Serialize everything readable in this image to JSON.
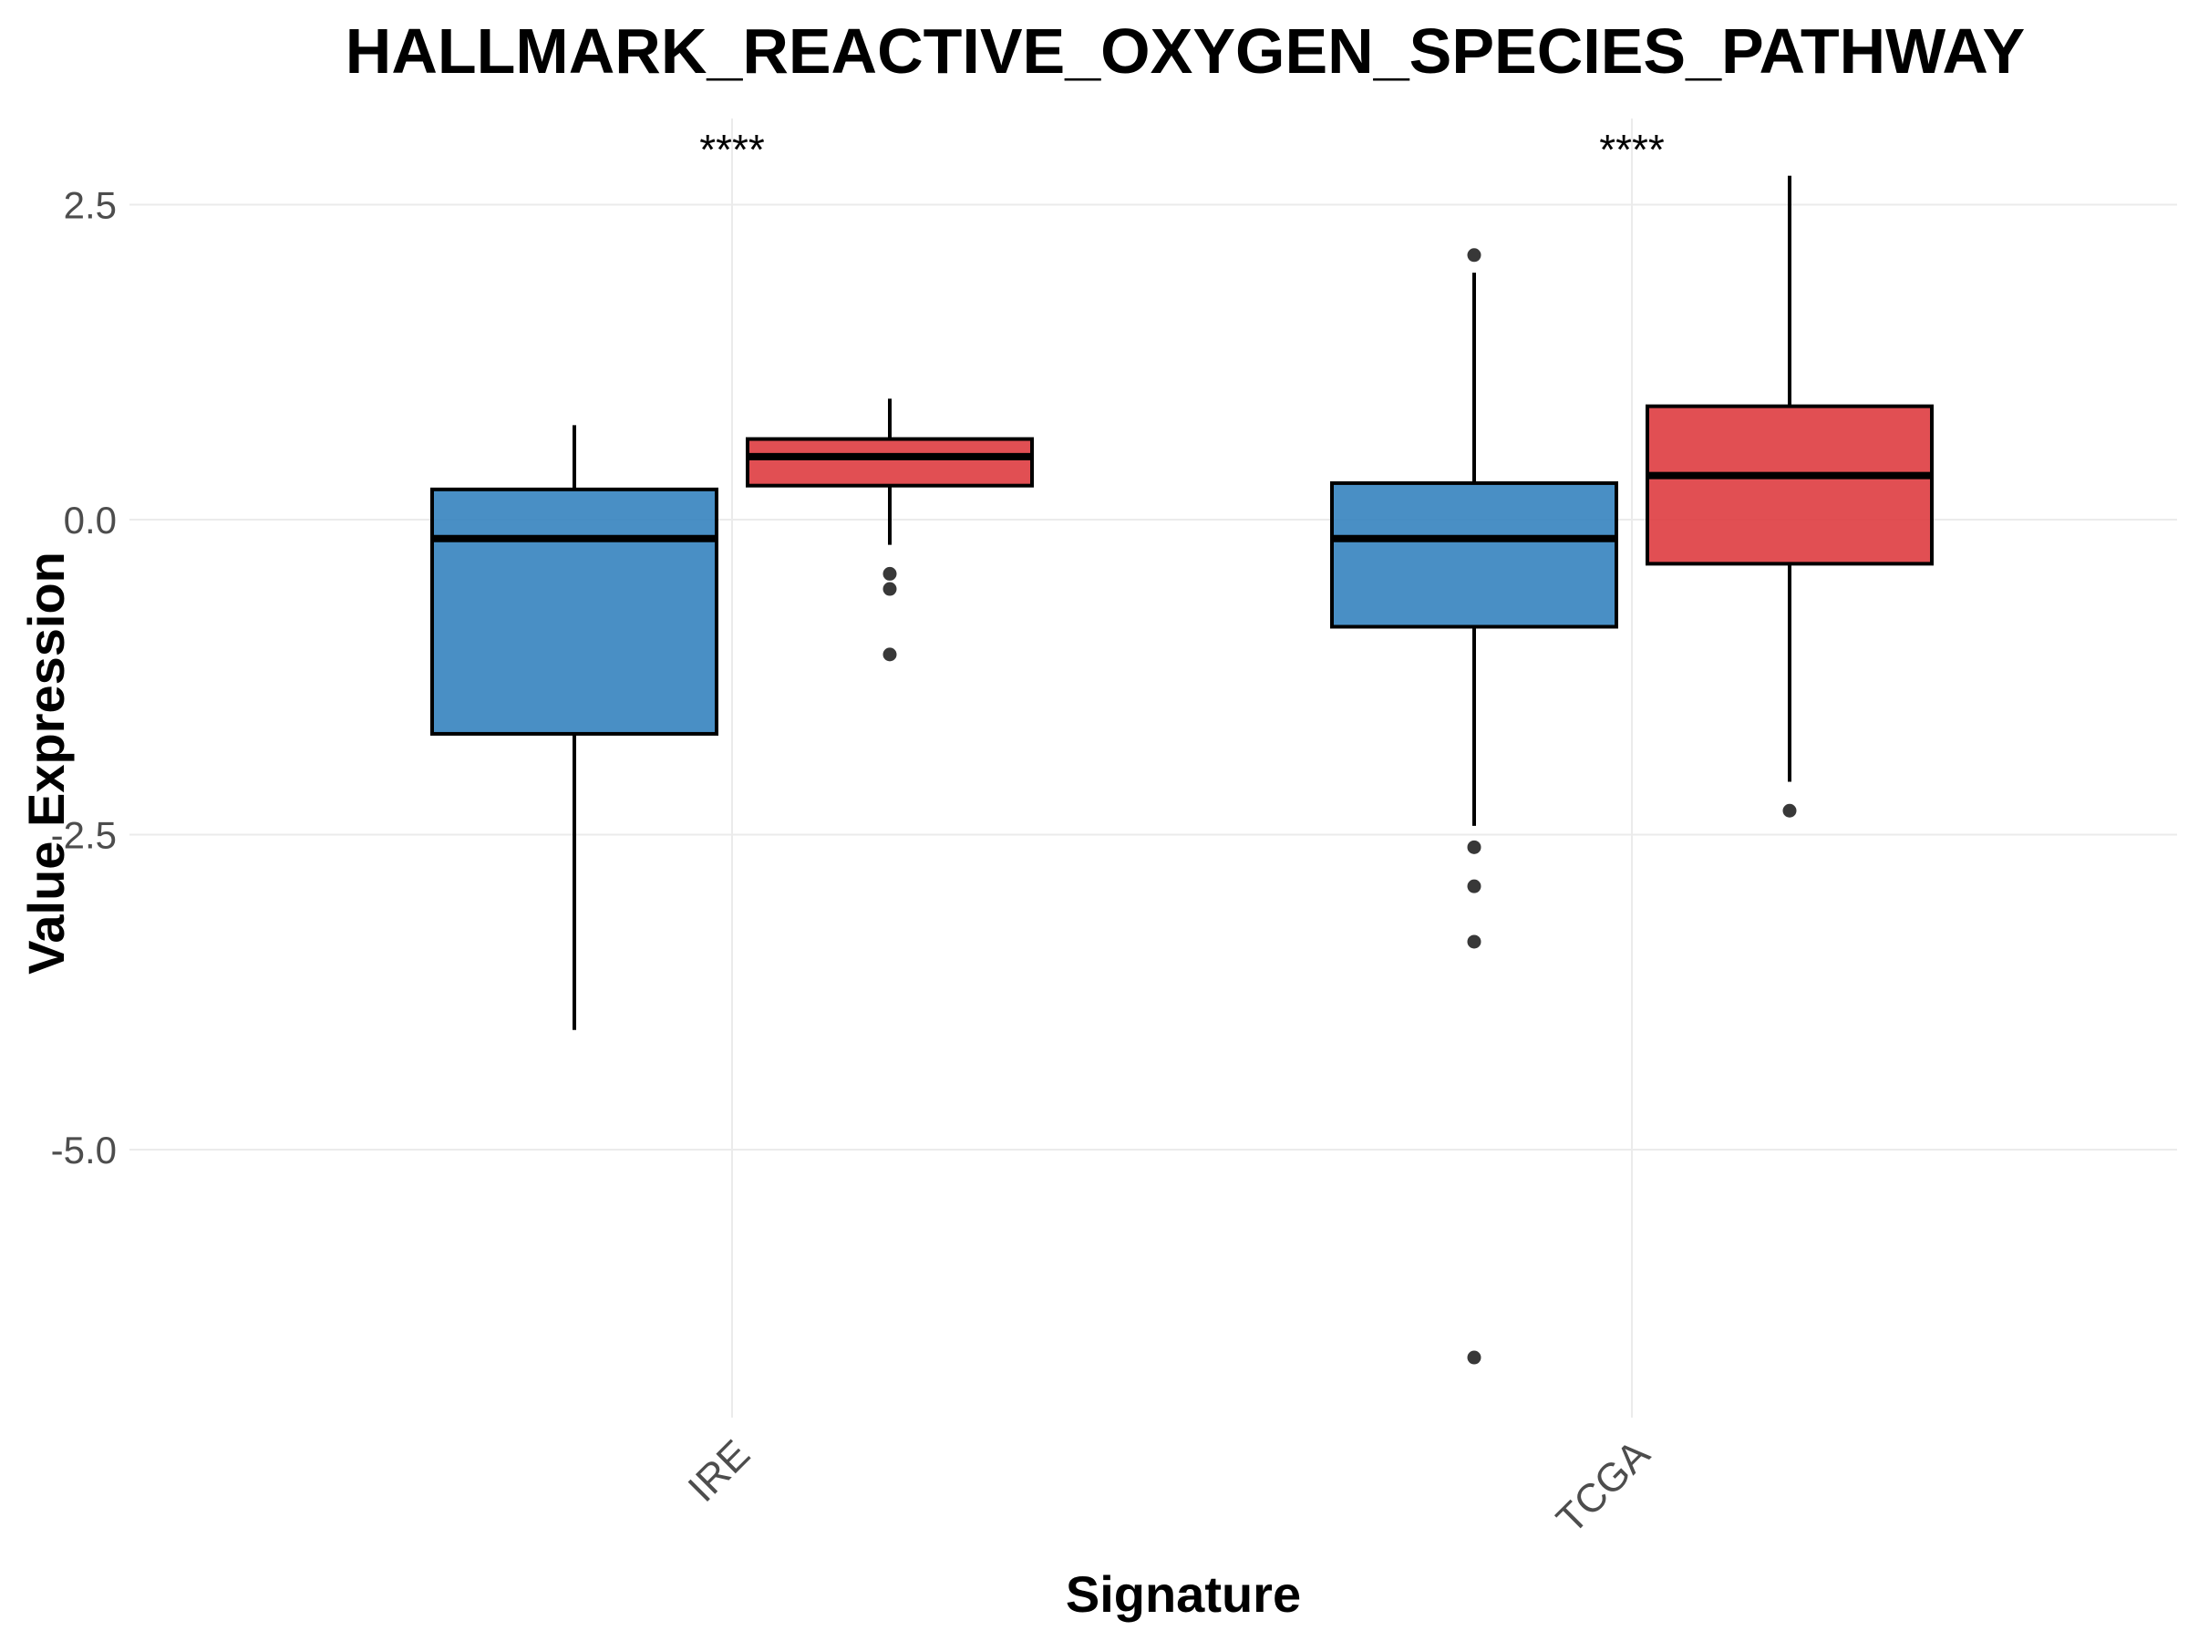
{
  "chart_data": {
    "type": "boxplot",
    "title": "HALLMARK_REACTIVE_OXYGEN_SPECIES_PATHWAY",
    "xlabel": "Signature",
    "ylabel": "Value Expression",
    "categories": [
      "IRE",
      "TCGA"
    ],
    "ylim": [
      -7.2,
      3.2
    ],
    "yticks": [
      2.5,
      0.0,
      -2.5,
      -5.0
    ],
    "ytick_labels": [
      "2.5",
      "0.0",
      "-2.5",
      "-5.0"
    ],
    "grid": true,
    "colors": {
      "group1": "#2e7ebc",
      "group2": "#dc3539"
    },
    "boxes": [
      {
        "category": "IRE",
        "group": 1,
        "whisker_low": -4.05,
        "q1": -1.7,
        "median": -0.15,
        "q3": 0.24,
        "whisker_high": 0.75,
        "outliers": []
      },
      {
        "category": "IRE",
        "group": 2,
        "whisker_low": -0.2,
        "q1": 0.27,
        "median": 0.5,
        "q3": 0.64,
        "whisker_high": 0.96,
        "outliers": [
          -0.43,
          -0.55,
          -1.07
        ]
      },
      {
        "category": "TCGA",
        "group": 1,
        "whisker_low": -2.43,
        "q1": -0.85,
        "median": -0.15,
        "q3": 0.29,
        "whisker_high": 1.96,
        "outliers": [
          2.1,
          -2.6,
          -2.91,
          -3.35,
          -6.65
        ]
      },
      {
        "category": "TCGA",
        "group": 2,
        "whisker_low": -2.08,
        "q1": -0.35,
        "median": 0.35,
        "q3": 0.9,
        "whisker_high": 2.73,
        "outliers": [
          -2.31
        ]
      }
    ],
    "annotations": [
      {
        "category": "IRE",
        "text": "****"
      },
      {
        "category": "TCGA",
        "text": "****"
      }
    ]
  }
}
